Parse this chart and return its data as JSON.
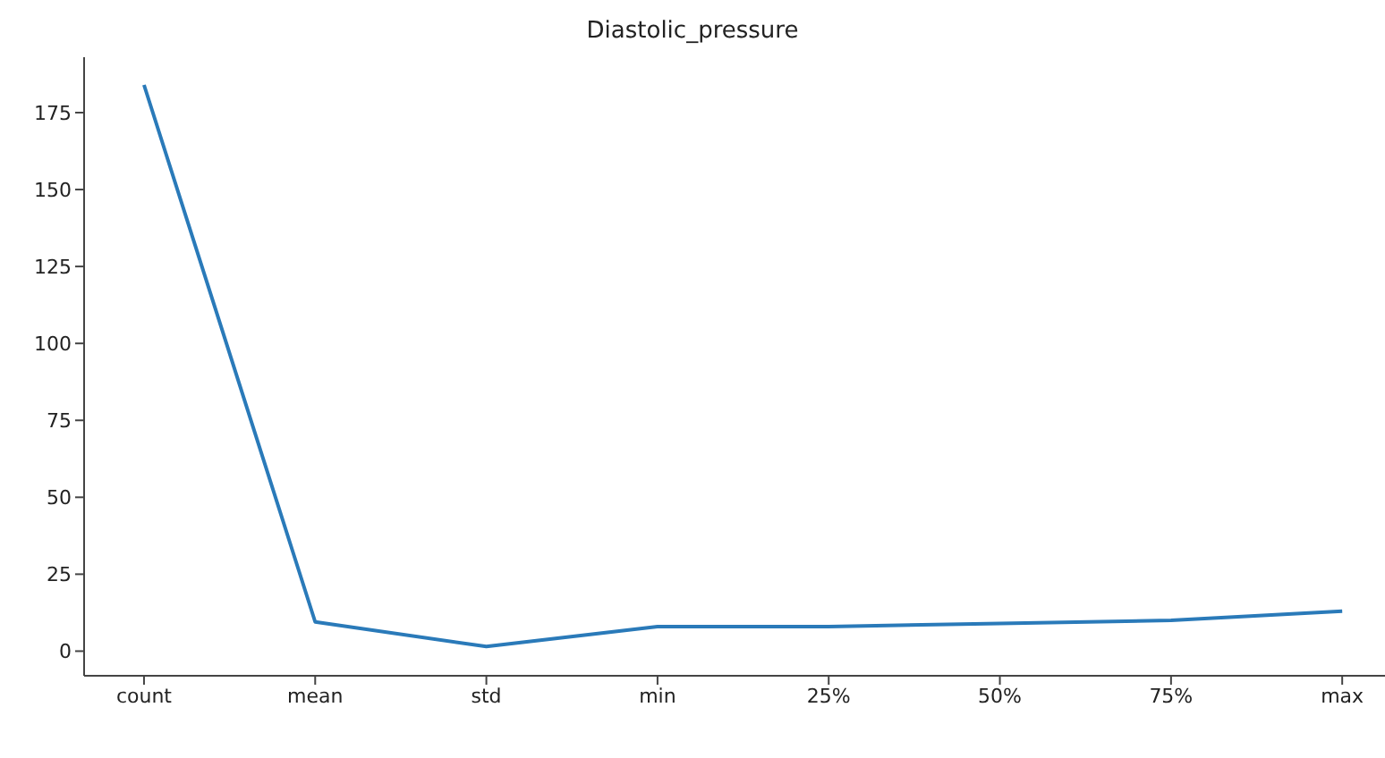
{
  "chart_data": {
    "type": "line",
    "title": "Diastolic_pressure",
    "categories": [
      "count",
      "mean",
      "std",
      "min",
      "25%",
      "50%",
      "75%",
      "max"
    ],
    "series": [
      {
        "color": "#2a7ab9",
        "values": [
          184,
          9.5,
          1.5,
          8,
          8,
          9,
          10,
          13
        ]
      }
    ],
    "ylim": [
      -8,
      193
    ],
    "yticks": [
      0,
      25,
      50,
      75,
      100,
      125,
      150,
      175
    ],
    "grid": false,
    "legend": false,
    "marker": "none",
    "line_style": "solid"
  }
}
